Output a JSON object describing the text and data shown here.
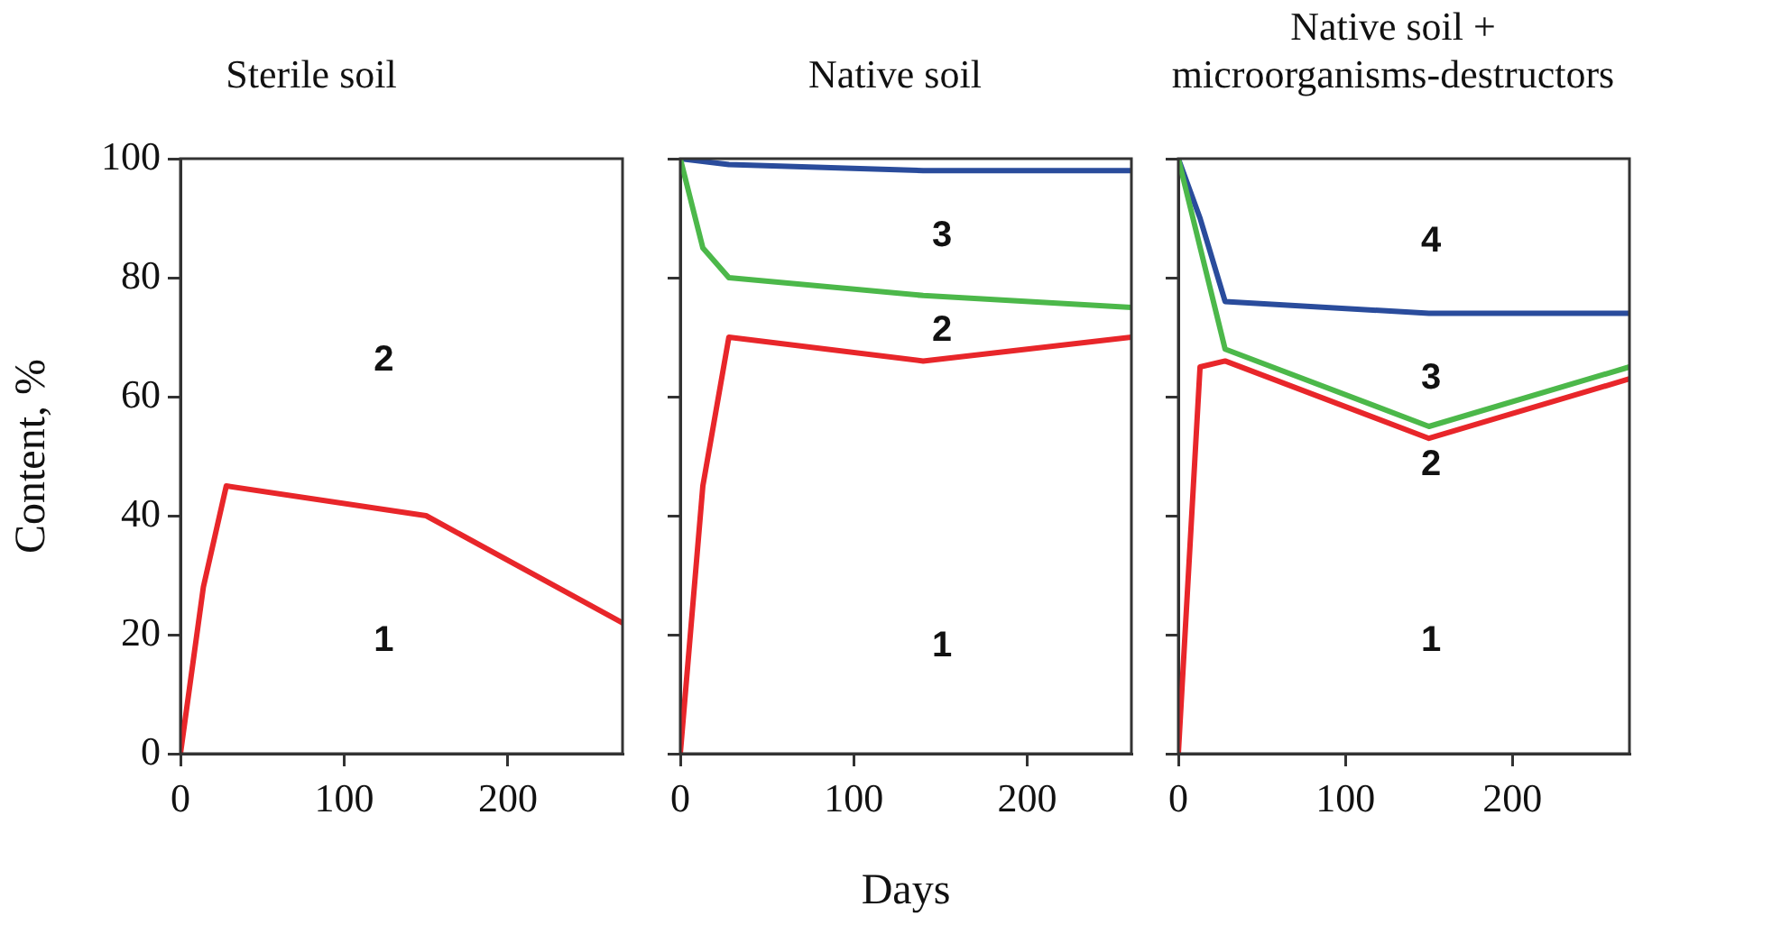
{
  "chart_data": [
    {
      "type": "line",
      "title": "Sterile soil",
      "ylabel": "Content, %",
      "xlim": [
        0,
        270
      ],
      "xticks": [
        0,
        100,
        200
      ],
      "ylim": [
        0,
        100
      ],
      "yticks": [
        0,
        20,
        40,
        60,
        80,
        100
      ],
      "series": [
        {
          "color": "#e8262a",
          "x": [
            0,
            14,
            28,
            150,
            270
          ],
          "values": [
            0,
            28,
            45,
            40,
            22
          ]
        }
      ],
      "annotations": [
        "2",
        "1"
      ]
    },
    {
      "type": "line",
      "title": "Native soil",
      "xlabel": "Days",
      "xlim": [
        0,
        260
      ],
      "xticks": [
        0,
        100,
        200
      ],
      "ylim": [
        0,
        100
      ],
      "yticks": [
        0,
        20,
        40,
        60,
        80,
        100
      ],
      "tick_labels": "x",
      "series": [
        {
          "color": "#e8262a",
          "x": [
            0,
            13,
            28,
            140,
            260
          ],
          "values": [
            0,
            45,
            70,
            66,
            70
          ]
        },
        {
          "color": "#4cb84a",
          "x": [
            0,
            13,
            28,
            140,
            260
          ],
          "values": [
            100,
            85,
            80,
            77,
            75
          ]
        },
        {
          "color": "#2a4c9c",
          "x": [
            0,
            28,
            140,
            260
          ],
          "values": [
            100,
            99,
            98,
            98
          ]
        }
      ],
      "annotations": [
        "3",
        "2",
        "1"
      ]
    },
    {
      "type": "line",
      "title": "Native soil +\nmicroorganisms-destructors",
      "xlim": [
        0,
        270
      ],
      "xticks": [
        0,
        100,
        200
      ],
      "ylim": [
        0,
        100
      ],
      "yticks": [
        0,
        20,
        40,
        60,
        80,
        100
      ],
      "tick_labels": "x",
      "series": [
        {
          "color": "#e8262a",
          "x": [
            0,
            13,
            28,
            150,
            270
          ],
          "values": [
            0,
            65,
            66,
            53,
            63
          ]
        },
        {
          "color": "#4cb84a",
          "x": [
            0,
            28,
            150,
            270
          ],
          "values": [
            100,
            68,
            55,
            65
          ]
        },
        {
          "color": "#2a4c9c",
          "x": [
            0,
            13,
            28,
            150,
            270
          ],
          "values": [
            100,
            90,
            76,
            74,
            74
          ]
        }
      ],
      "annotations": [
        "4",
        "3",
        "2",
        "1"
      ]
    }
  ]
}
